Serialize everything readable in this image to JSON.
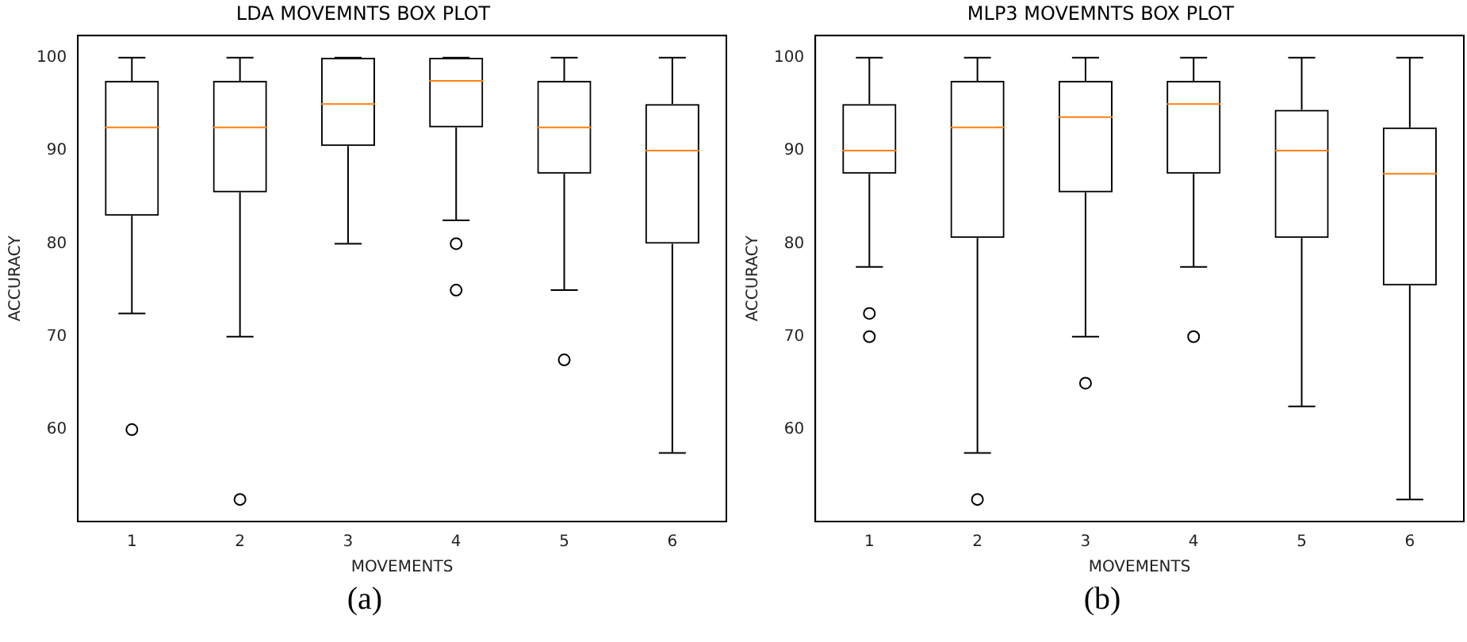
{
  "chart_data": [
    {
      "type": "box",
      "title": "LDA MOVEMNTS BOX PLOT",
      "xlabel": "MOVEMENTS",
      "ylabel": "ACCURACY",
      "categories": [
        "1",
        "2",
        "3",
        "4",
        "5",
        "6"
      ],
      "color": "#000000",
      "ylim": [
        50.125,
        102.375
      ],
      "yticks": [
        60,
        70,
        80,
        90,
        100
      ],
      "annotations": [
        "(a)"
      ],
      "boxes": [
        {
          "low": 72.5,
          "q1": 83,
          "median": 92.5,
          "q3": 97.5,
          "high": 100,
          "outliers": [
            60
          ]
        },
        {
          "low": 70,
          "q1": 85.5,
          "median": 92.5,
          "q3": 97.5,
          "high": 100,
          "outliers": [
            52.5
          ]
        },
        {
          "low": 80,
          "q1": 90.5,
          "median": 95,
          "q3": 100,
          "high": 100
        },
        {
          "low": 82.5,
          "q1": 92.5,
          "median": 97.5,
          "q3": 100,
          "high": 100,
          "outliers": [
            80,
            75
          ]
        },
        {
          "low": 75,
          "q1": 87.5,
          "median": 92.5,
          "q3": 97.5,
          "high": 100,
          "outliers": [
            67.5
          ]
        },
        {
          "low": 57.5,
          "q1": 80,
          "median": 90,
          "q3": 95,
          "high": 100
        }
      ]
    },
    {
      "type": "box",
      "title": "MLP3 MOVEMNTS BOX PLOT",
      "xlabel": "MOVEMENTS",
      "ylabel": "ACCURACY",
      "categories": [
        "1",
        "2",
        "3",
        "4",
        "5",
        "6"
      ],
      "color": "#000000",
      "ylim": [
        50.125,
        102.375
      ],
      "yticks": [
        60,
        70,
        80,
        90,
        100
      ],
      "annotations": [
        "(b)"
      ],
      "boxes": [
        {
          "low": 77.5,
          "q1": 87.5,
          "median": 90,
          "q3": 95,
          "high": 100,
          "outliers": [
            72.5,
            70
          ]
        },
        {
          "low": 57.5,
          "q1": 80.6,
          "median": 92.5,
          "q3": 97.5,
          "high": 100,
          "outliers": [
            52.5
          ]
        },
        {
          "low": 70,
          "q1": 85.5,
          "median": 93.6,
          "q3": 97.5,
          "high": 100,
          "outliers": [
            65
          ]
        },
        {
          "low": 77.5,
          "q1": 87.5,
          "median": 95,
          "q3": 97.5,
          "high": 100,
          "outliers": [
            70
          ]
        },
        {
          "low": 62.5,
          "q1": 80.6,
          "median": 90,
          "q3": 94.4,
          "high": 100
        },
        {
          "low": 52.5,
          "q1": 75.5,
          "median": 87.5,
          "q3": 92.5,
          "high": 100
        }
      ]
    }
  ]
}
